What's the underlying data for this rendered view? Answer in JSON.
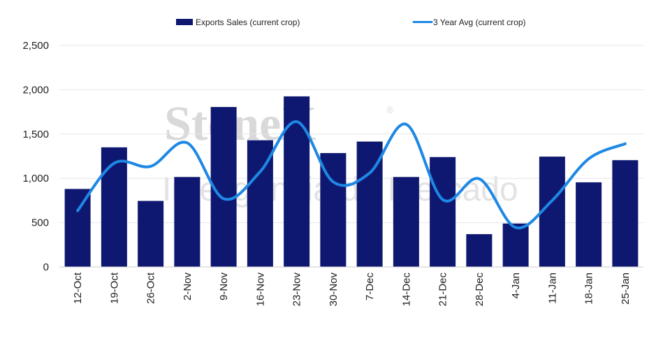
{
  "colors": {
    "bar": "#0f1870",
    "line": "#1e88e5",
    "grid": "#e6e6e6",
    "axis": "#cccccc"
  },
  "watermark": {
    "brand": "StoneX",
    "registered": "®",
    "tagline": "Inteligência de Mercado"
  },
  "chart_data": {
    "type": "bar",
    "categories": [
      "12-Oct",
      "19-Oct",
      "26-Oct",
      "2-Nov",
      "9-Nov",
      "16-Nov",
      "23-Nov",
      "30-Nov",
      "7-Dec",
      "14-Dec",
      "21-Dec",
      "28-Dec",
      "4-Jan",
      "11-Jan",
      "18-Jan",
      "25-Jan"
    ],
    "series": [
      {
        "name": "Exports Sales (current crop)",
        "type": "bar",
        "values": [
          880,
          1350,
          745,
          1015,
          1805,
          1430,
          1925,
          1285,
          1415,
          1015,
          1240,
          370,
          490,
          1245,
          955,
          1205
        ]
      },
      {
        "name": "3 Year Avg (current crop)",
        "type": "line",
        "values": [
          635,
          1170,
          1135,
          1400,
          770,
          1075,
          1640,
          960,
          1060,
          1610,
          760,
          995,
          445,
          750,
          1220,
          1390
        ]
      }
    ],
    "y_ticks": [
      "0",
      "500",
      "1,000",
      "1,500",
      "2,000",
      "2,500"
    ],
    "ylim": [
      0,
      2500
    ],
    "grid": true,
    "legend_position": "top"
  }
}
